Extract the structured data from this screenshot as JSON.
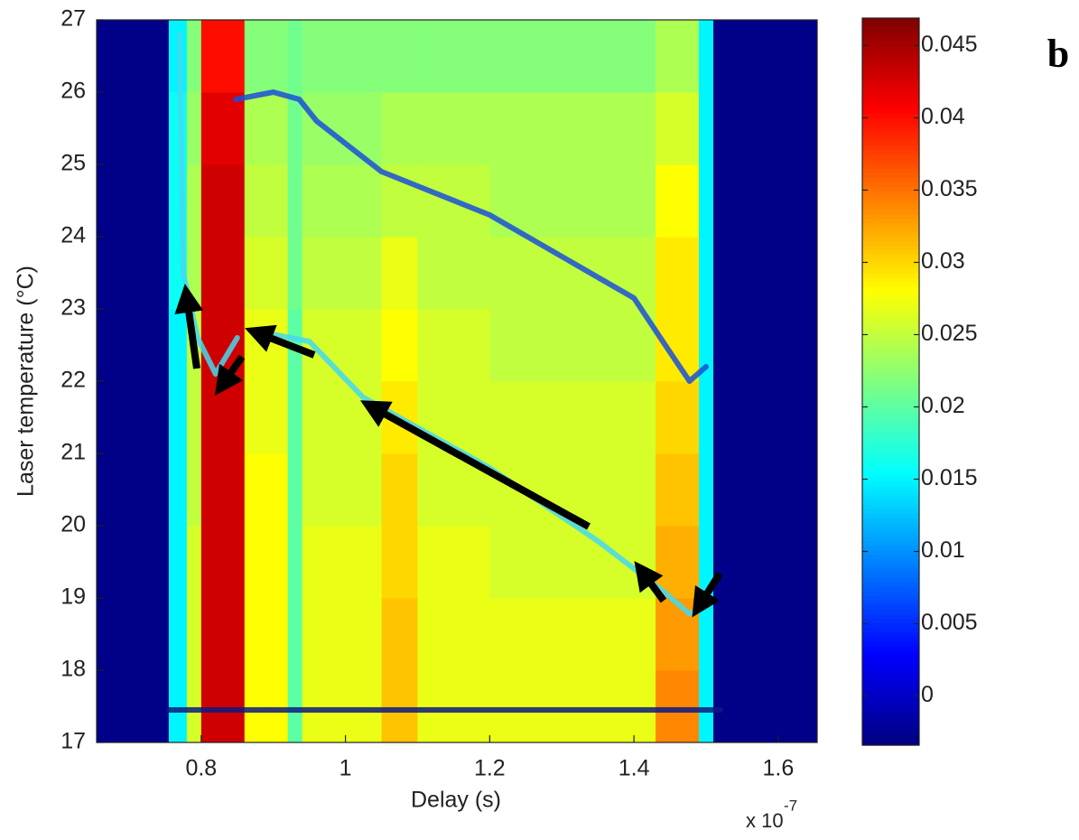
{
  "chart_data": {
    "type": "heatmap",
    "panel_label": "b",
    "xlabel": "Delay (s)",
    "ylabel": "Laser temperature (°C)",
    "x_multiplier": "x 10",
    "x_exponent": "-7",
    "xlim": [
      0.655,
      1.654
    ],
    "ylim": [
      17,
      27
    ],
    "xticks": [
      0.8,
      1,
      1.2,
      1.4,
      1.6
    ],
    "yticks": [
      17,
      18,
      19,
      20,
      21,
      22,
      23,
      24,
      25,
      26,
      27
    ],
    "colormap": "jet",
    "clim": [
      -0.0034,
      0.0469
    ],
    "cticks": [
      0,
      0.005,
      0.01,
      0.015,
      0.02,
      0.025,
      0.03,
      0.035,
      0.04,
      0.045
    ],
    "x_edges": [
      0.655,
      0.755,
      0.78,
      0.8,
      0.86,
      0.92,
      0.94,
      1.05,
      1.1,
      1.2,
      1.3,
      1.43,
      1.49,
      1.51,
      1.654
    ],
    "y_edges": [
      17,
      18,
      19,
      20,
      21,
      22,
      23,
      24,
      25,
      26,
      27
    ],
    "z": [
      [
        -0.003,
        0.015,
        0.026,
        0.043,
        0.028,
        0.02,
        0.027,
        0.031,
        0.027,
        0.027,
        0.027,
        0.034,
        0.015,
        -0.003
      ],
      [
        -0.003,
        0.015,
        0.026,
        0.043,
        0.028,
        0.02,
        0.027,
        0.031,
        0.027,
        0.027,
        0.027,
        0.033,
        0.015,
        -0.003
      ],
      [
        -0.003,
        0.015,
        0.026,
        0.043,
        0.028,
        0.02,
        0.027,
        0.03,
        0.027,
        0.026,
        0.026,
        0.032,
        0.015,
        -0.003
      ],
      [
        -0.003,
        0.015,
        0.025,
        0.043,
        0.028,
        0.02,
        0.026,
        0.03,
        0.026,
        0.026,
        0.026,
        0.031,
        0.015,
        -0.003
      ],
      [
        -0.003,
        0.015,
        0.025,
        0.043,
        0.027,
        0.02,
        0.026,
        0.029,
        0.026,
        0.026,
        0.026,
        0.03,
        0.015,
        -0.003
      ],
      [
        -0.003,
        0.015,
        0.025,
        0.043,
        0.027,
        0.02,
        0.026,
        0.028,
        0.026,
        0.025,
        0.025,
        0.029,
        0.015,
        -0.003
      ],
      [
        -0.003,
        0.016,
        0.024,
        0.043,
        0.026,
        0.021,
        0.025,
        0.027,
        0.025,
        0.025,
        0.025,
        0.029,
        0.015,
        -0.003
      ],
      [
        -0.003,
        0.016,
        0.024,
        0.043,
        0.025,
        0.021,
        0.024,
        0.025,
        0.025,
        0.024,
        0.024,
        0.028,
        0.015,
        -0.003
      ],
      [
        -0.003,
        0.016,
        0.023,
        0.042,
        0.024,
        0.021,
        0.023,
        0.024,
        0.024,
        0.024,
        0.024,
        0.026,
        0.015,
        -0.003
      ],
      [
        -0.003,
        0.015,
        0.022,
        0.04,
        0.022,
        0.021,
        0.022,
        0.022,
        0.022,
        0.022,
        0.022,
        0.024,
        0.015,
        -0.003
      ]
    ],
    "ridges": [
      {
        "color": "#1a4fd8",
        "x": [
          0.848,
          0.9,
          0.936,
          0.96,
          1.05,
          1.2,
          1.4,
          1.45,
          1.477,
          1.5
        ],
        "y": [
          25.9,
          26.0,
          25.9,
          25.6,
          24.9,
          24.3,
          23.15,
          22.4,
          22.0,
          22.2
        ]
      },
      {
        "color": "#45d8f0",
        "x": [
          0.898,
          0.95,
          1.024,
          1.2,
          1.351,
          1.44,
          1.477,
          1.5
        ],
        "y": [
          22.65,
          22.55,
          21.78,
          20.8,
          19.78,
          19.1,
          18.78,
          18.9
        ]
      },
      {
        "color": "#45d8f0",
        "x": [
          0.77,
          0.775,
          0.795,
          0.82,
          0.85
        ],
        "y": [
          26.8,
          23.5,
          22.6,
          22.1,
          22.6
        ]
      },
      {
        "color": "#0a1a80",
        "x": [
          0.755,
          1.52
        ],
        "y": [
          17.45,
          17.45
        ]
      }
    ]
  }
}
